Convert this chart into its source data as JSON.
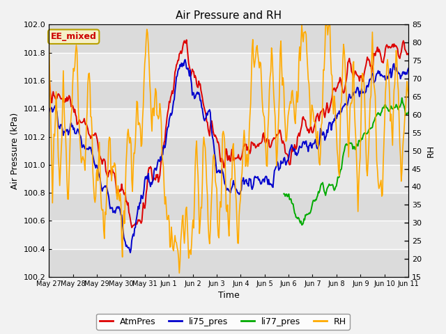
{
  "title": "Air Pressure and RH",
  "xlabel": "Time",
  "ylabel_left": "Air Pressure (kPa)",
  "ylabel_right": "RH",
  "ylim_left": [
    100.2,
    102.0
  ],
  "ylim_right": [
    15,
    85
  ],
  "yticks_left": [
    100.2,
    100.4,
    100.6,
    100.8,
    101.0,
    101.2,
    101.4,
    101.6,
    101.8,
    102.0
  ],
  "yticks_right": [
    15,
    20,
    25,
    30,
    35,
    40,
    45,
    50,
    55,
    60,
    65,
    70,
    75,
    80,
    85
  ],
  "xtick_labels": [
    "May 27",
    "May 28",
    "May 29",
    "May 30",
    "May 31",
    "Jun 1",
    "Jun 2",
    "Jun 3",
    "Jun 4",
    "Jun 5",
    "Jun 6",
    "Jun 7",
    "Jun 8",
    "Jun 9",
    "Jun 10",
    "Jun 11"
  ],
  "annotation_text": "EE_mixed",
  "annotation_color": "#cc0000",
  "annotation_bg": "#f5f0c8",
  "annotation_border": "#b8a000",
  "colors": {
    "AtmPres": "#dd0000",
    "li75_pres": "#0000cc",
    "li77_pres": "#00aa00",
    "RH": "#ffaa00"
  },
  "legend_labels": [
    "AtmPres",
    "li75_pres",
    "li77_pres",
    "RH"
  ],
  "plot_bg_light": "#e8e8e8",
  "plot_bg_dark": "#d0d0d0",
  "grid_color": "#ffffff"
}
